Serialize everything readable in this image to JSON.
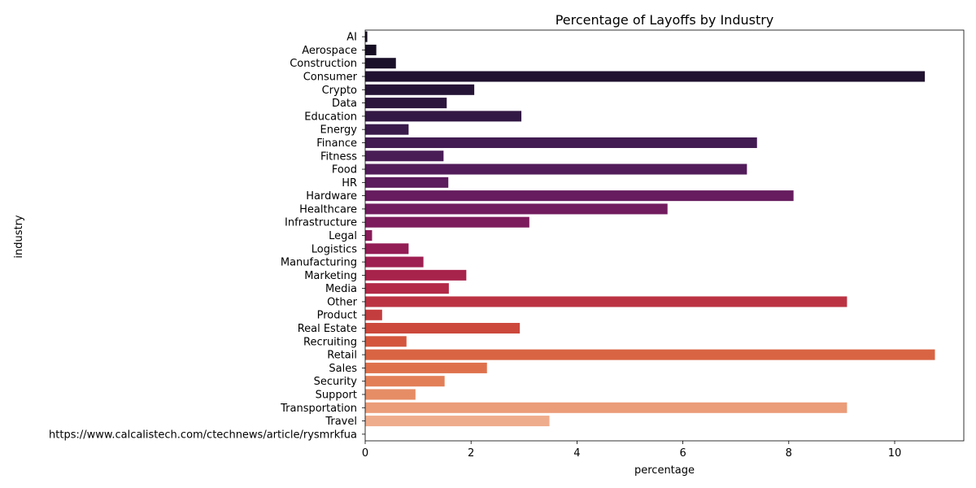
{
  "chart_data": {
    "type": "bar",
    "orientation": "horizontal",
    "title": "Percentage of Layoffs by Industry",
    "xlabel": "percentage",
    "ylabel": "industry",
    "xlim": [
      0,
      11.3
    ],
    "xticks": [
      0,
      2,
      4,
      6,
      8,
      10
    ],
    "grid": false,
    "legend": "none",
    "palette": "rocket",
    "categories": [
      "AI",
      "Aerospace",
      "Construction",
      "Consumer",
      "Crypto",
      "Data",
      "Education",
      "Energy",
      "Finance",
      "Fitness",
      "Food",
      "HR",
      "Hardware",
      "Healthcare",
      "Infrastructure",
      "Legal",
      "Logistics",
      "Manufacturing",
      "Marketing",
      "Media",
      "Other",
      "Product",
      "Real Estate",
      "Recruiting",
      "Retail",
      "Sales",
      "Security",
      "Support",
      "Transportation",
      "Travel",
      "https://www.calcalistech.com/ctechnews/article/rysmrkfua"
    ],
    "values": [
      0.04,
      0.21,
      0.58,
      10.57,
      2.06,
      1.54,
      2.95,
      0.82,
      7.4,
      1.48,
      7.21,
      1.57,
      8.09,
      5.71,
      3.1,
      0.13,
      0.82,
      1.1,
      1.91,
      1.58,
      9.1,
      0.32,
      2.92,
      0.78,
      10.76,
      2.3,
      1.5,
      0.95,
      9.1,
      3.48,
      0.0
    ],
    "colors": [
      "#120c1d",
      "#160e23",
      "#1b1029",
      "#201230",
      "#261436",
      "#2c163d",
      "#321844",
      "#391a4b",
      "#411b51",
      "#491c56",
      "#521c5a",
      "#5c1c5d",
      "#661c5e",
      "#711c5e",
      "#7c1c5c",
      "#881c59",
      "#931d55",
      "#9e1f51",
      "#a8234c",
      "#b22a47",
      "#bb3342",
      "#c43d3e",
      "#cc483b",
      "#d3563d",
      "#d96443",
      "#de714c",
      "#e27f58",
      "#e68d66",
      "#eb9c78",
      "#efac8c",
      "#f3bda2"
    ]
  }
}
